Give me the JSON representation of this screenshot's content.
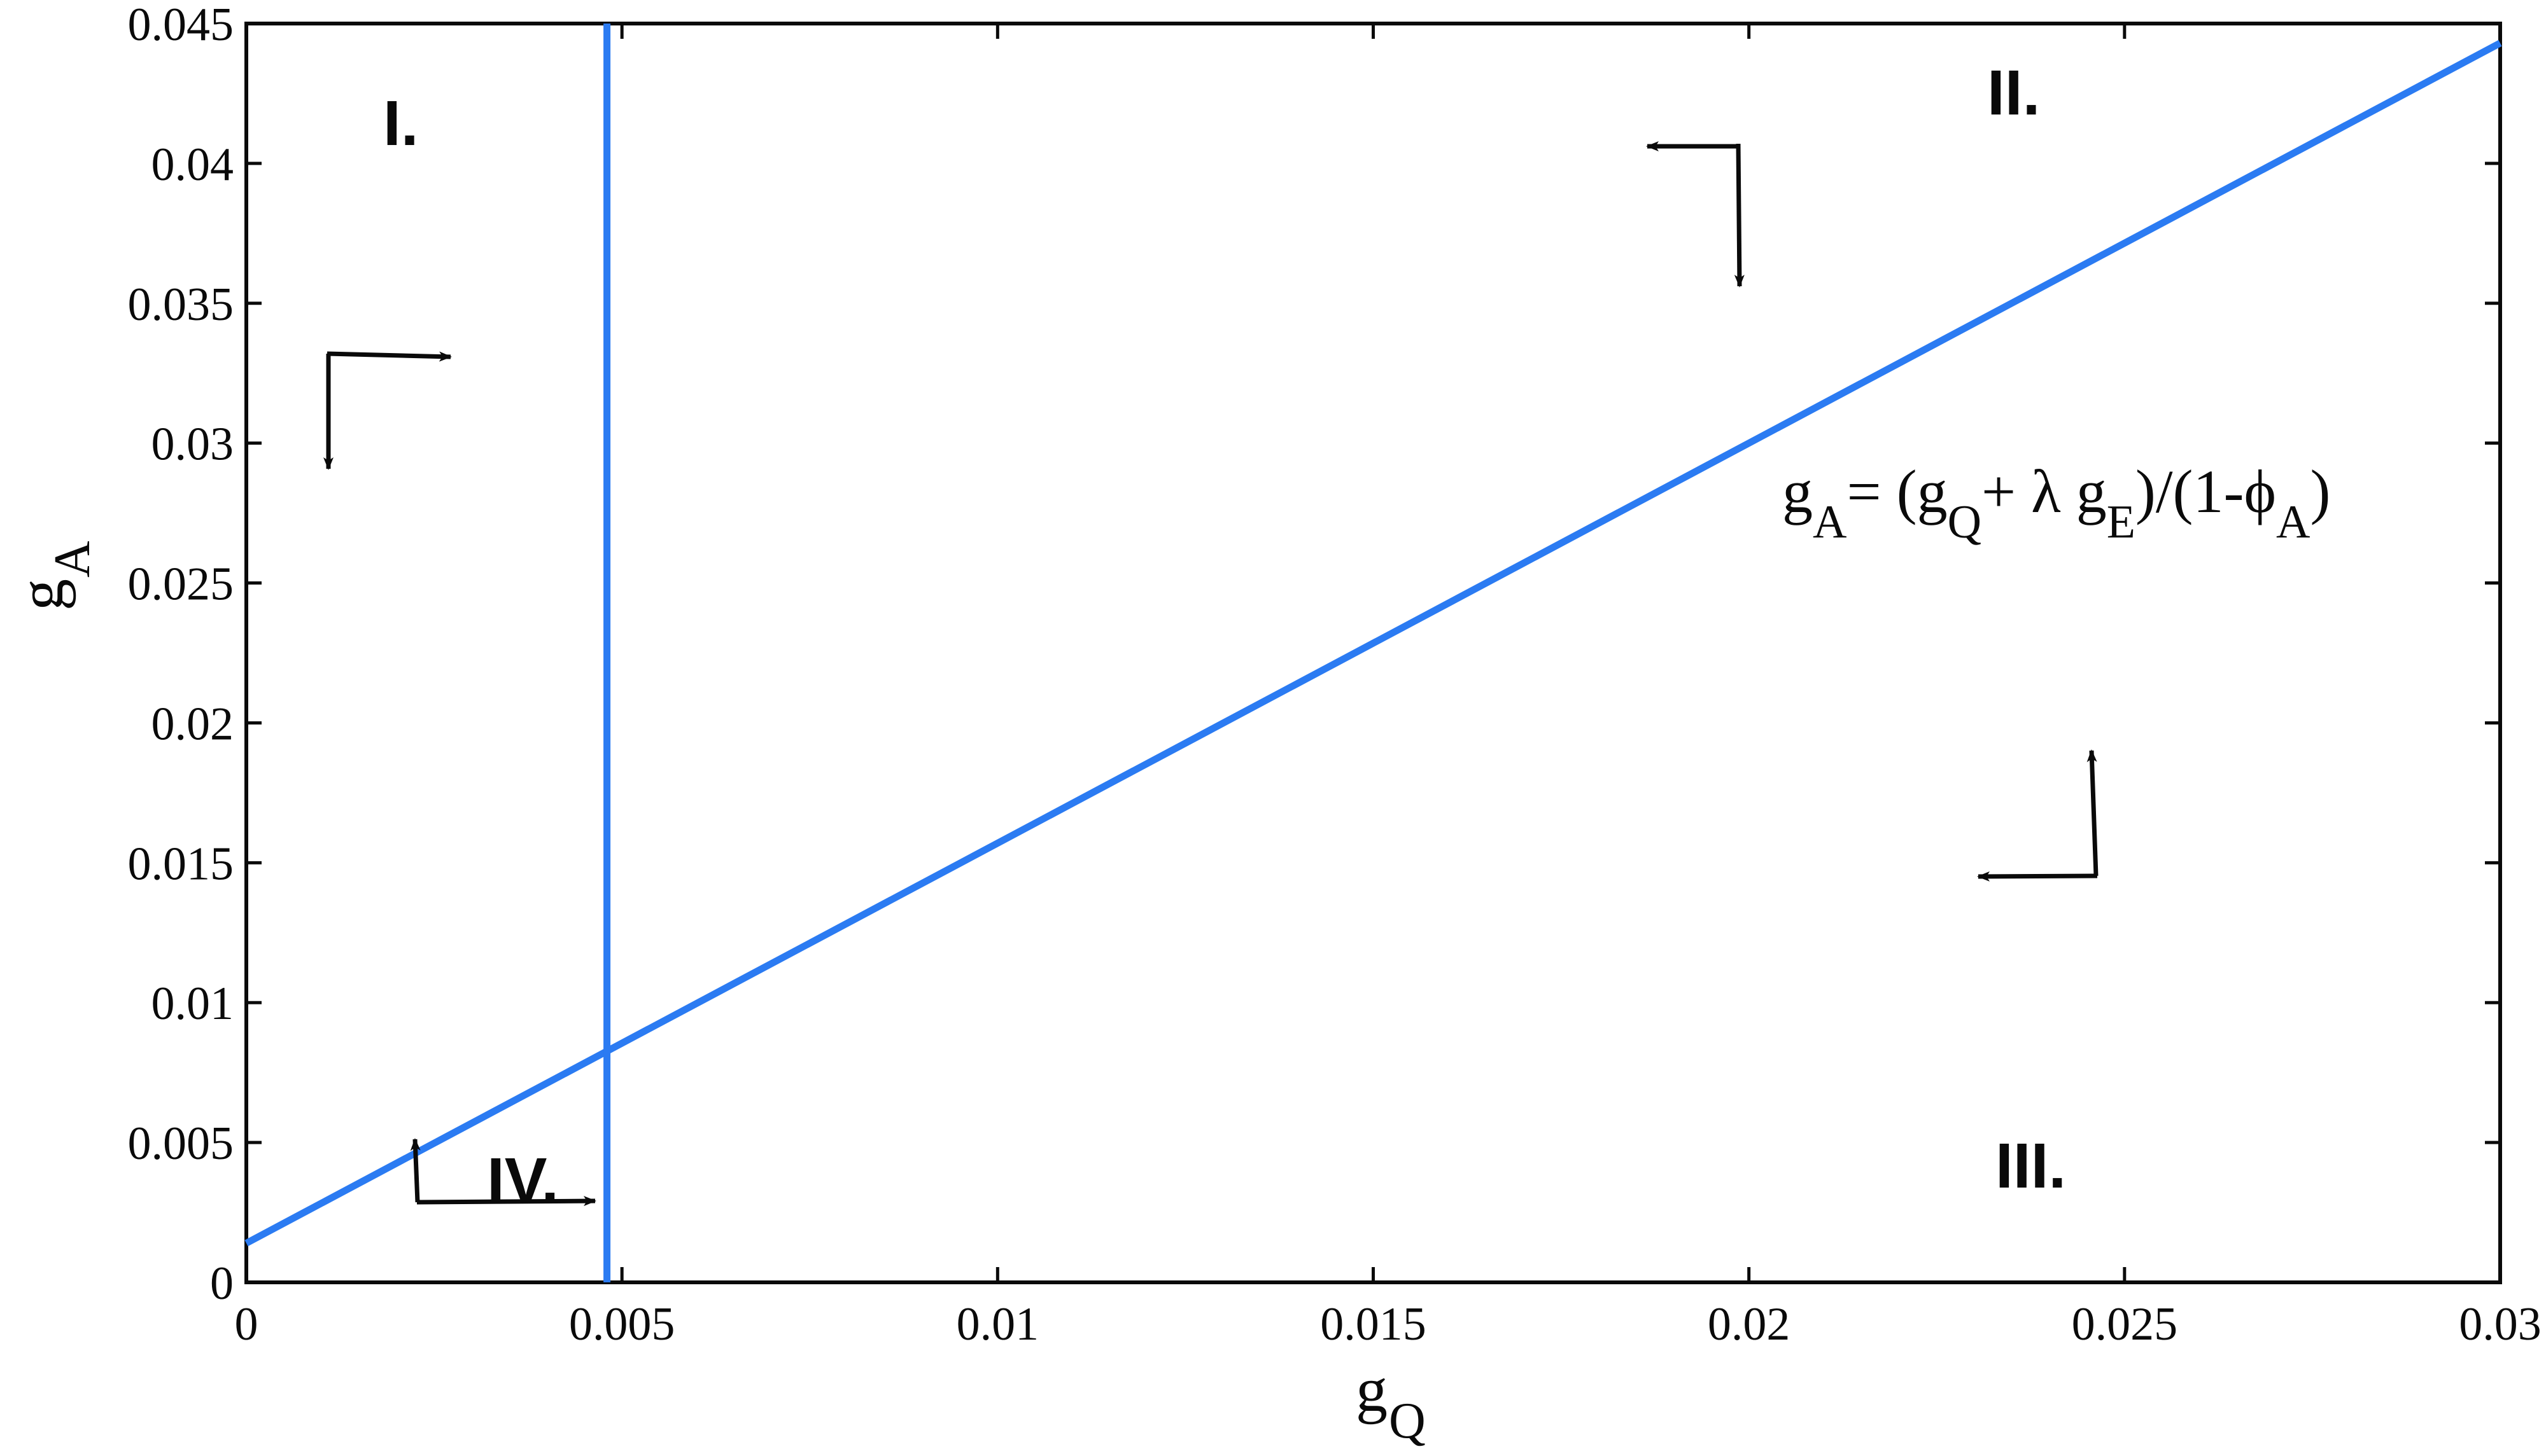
{
  "chart_data": {
    "type": "line",
    "title": "",
    "xlabel": "g_Q",
    "xlabel_main": "g",
    "xlabel_sub": "Q",
    "ylabel": "g_A",
    "ylabel_main": "g",
    "ylabel_sub": "A",
    "xlim": [
      0,
      0.03
    ],
    "ylim": [
      0,
      0.045
    ],
    "grid": false,
    "legend": "none",
    "x_ticks": [
      "0",
      "0.005",
      "0.01",
      "0.015",
      "0.02",
      "0.025",
      "0.03"
    ],
    "y_ticks": [
      "0",
      "0.005",
      "0.01",
      "0.015",
      "0.02",
      "0.025",
      "0.03",
      "0.035",
      "0.04",
      "0.045"
    ],
    "series": [
      {
        "name": "g_A = (g_Q + λ g_E)/(1-φ_A)",
        "color": "#2b7bf2",
        "x": [
          0,
          0.03
        ],
        "y": [
          0.0014,
          0.0443
        ]
      },
      {
        "name": "vertical nullcline",
        "color": "#2b7bf2",
        "x": [
          0.0048,
          0.0048
        ],
        "y": [
          0,
          0.045
        ]
      }
    ],
    "annotations": [
      {
        "text": "I.",
        "x": 0.0021,
        "y": 0.0415
      },
      {
        "text": "II.",
        "x": 0.0236,
        "y": 0.0422
      },
      {
        "text": "III.",
        "x": 0.0237,
        "y": 0.0042
      },
      {
        "text": "IV.",
        "x": 0.0038,
        "y": 0.0037
      },
      {
        "text": "g_A = (g_Q + λ g_E)/(1-φ_A)",
        "x": 0.0255,
        "y": 0.0275
      }
    ],
    "direction_arrows": [
      {
        "region": "I.",
        "horizontal": "right",
        "vertical": "down"
      },
      {
        "region": "II.",
        "horizontal": "left",
        "vertical": "down"
      },
      {
        "region": "III.",
        "horizontal": "left",
        "vertical": "up"
      },
      {
        "region": "IV.",
        "horizontal": "right",
        "vertical": "up"
      }
    ]
  },
  "labels": {
    "region_1": "I.",
    "region_2": "II.",
    "region_3": "III.",
    "region_4": "IV.",
    "eq_g": "g",
    "eq_sub_A": "A",
    "eq_equals": "= (g",
    "eq_sub_Q": "Q",
    "eq_plus": "+ λ g",
    "eq_sub_E": "E",
    "eq_tail": ")/(1-ϕ",
    "eq_sub_A2": "A",
    "eq_close": ")"
  }
}
